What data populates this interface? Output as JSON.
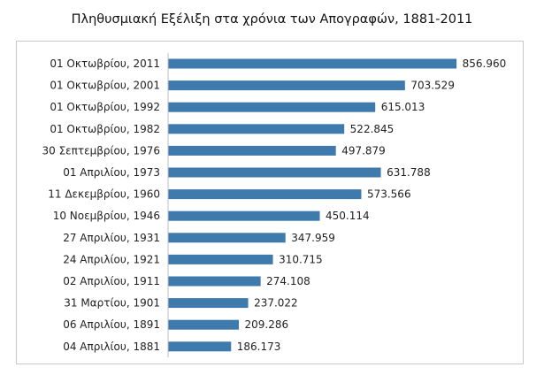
{
  "chart_data": {
    "type": "bar",
    "orientation": "horizontal",
    "title": "Πληθυσμιακή Εξέλιξη στα χρόνια των Απογραφών, 1881-2011",
    "categories": [
      "01 Οκτωβρίου, 2011",
      "01 Οκτωβρίου, 2001",
      "01 Οκτωβρίου, 1992",
      "01 Οκτωβρίου, 1982",
      "30 Σεπτεμβρίου, 1976",
      "01 Απριλίου, 1973",
      "11 Δεκεμβρίου, 1960",
      "10 Νοεμβρίου, 1946",
      "27 Απριλίου, 1931",
      "24 Απριλίου, 1921",
      "02 Απριλίου, 1911",
      "31 Μαρτίου, 1901",
      "06 Απριλίου, 1891",
      "04 Απριλίου, 1881"
    ],
    "values": [
      856960,
      703529,
      615013,
      522845,
      497879,
      631788,
      573566,
      450114,
      347959,
      310715,
      274108,
      237022,
      209286,
      186173
    ],
    "value_labels": [
      "856.960",
      "703.529",
      "615.013",
      "522.845",
      "497.879",
      "631.788",
      "573.566",
      "450.114",
      "347.959",
      "310.715",
      "274.108",
      "237.022",
      "209.286",
      "186.173"
    ],
    "xlim": [
      0,
      1000000
    ],
    "grid": false,
    "legend": "none",
    "bar_color": "#3f7aad",
    "axis_color": "#bfbfbf"
  }
}
